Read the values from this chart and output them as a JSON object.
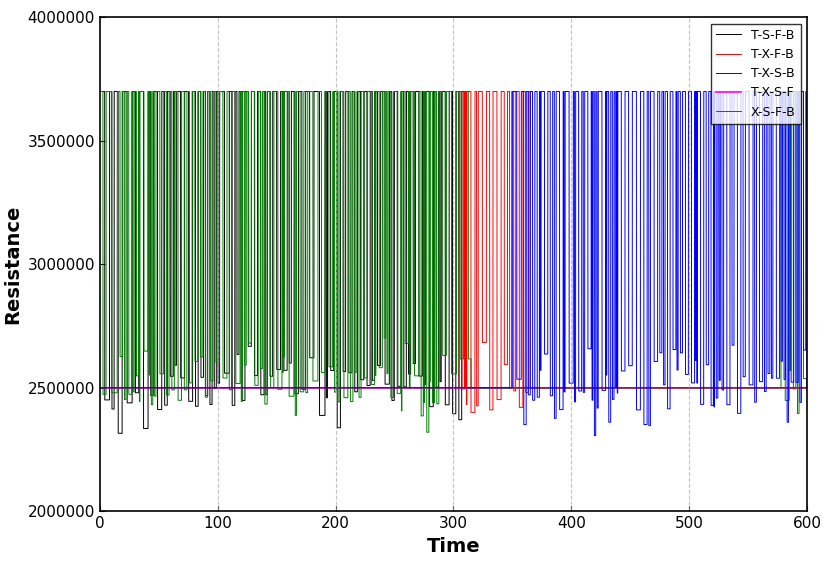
{
  "xlabel": "Time",
  "ylabel": "Resistance",
  "xlim": [
    0,
    600
  ],
  "ylim": [
    2000000,
    4000000
  ],
  "yticks": [
    2000000,
    2500000,
    3000000,
    3500000,
    4000000
  ],
  "xticks": [
    0,
    100,
    200,
    300,
    400,
    500,
    600
  ],
  "grid_x_positions": [
    100,
    200,
    300,
    400,
    500
  ],
  "high_val": 3700000,
  "low_val": 2500000,
  "magenta_val": 2500000,
  "series_order_plot": [
    "magenta",
    "black",
    "green",
    "red",
    "blue"
  ],
  "series": [
    {
      "label": "T-S-F-B",
      "key": "black",
      "color": "#000000",
      "active_ranges": [
        [
          0,
          310
        ]
      ],
      "period_mean": 5.0,
      "period_std": 2.0,
      "low_mean": 2500000,
      "low_std": 80000,
      "oscillate": true,
      "seed": 1
    },
    {
      "label": "T-X-F-B",
      "key": "red",
      "color": "#ff0000",
      "active_ranges": [
        [
          305,
          365
        ]
      ],
      "period_mean": 5.5,
      "period_std": 2.5,
      "low_mean": 2500000,
      "low_std": 80000,
      "oscillate": true,
      "seed": 2
    },
    {
      "label": "T-X-S-B",
      "key": "blue",
      "color": "#0000ff",
      "active_ranges": [
        [
          350,
          600
        ]
      ],
      "period_mean": 4.0,
      "period_std": 2.0,
      "low_mean": 2500000,
      "low_std": 80000,
      "oscillate": true,
      "seed": 3
    },
    {
      "label": "T-X-S-F",
      "key": "magenta",
      "color": "#ff00ff",
      "active_ranges": [],
      "period_mean": 0,
      "period_std": 0,
      "low_mean": 2500000,
      "low_std": 0,
      "oscillate": false,
      "seed": 4
    },
    {
      "label": "X-S-F-B",
      "key": "green",
      "color": "#008000",
      "active_ranges": [
        [
          0,
          315
        ],
        [
          578,
          600
        ]
      ],
      "period_mean": 4.5,
      "period_std": 2.0,
      "low_mean": 2500000,
      "low_std": 80000,
      "oscillate": true,
      "seed": 5
    }
  ],
  "legend_order": [
    "black",
    "red",
    "blue",
    "magenta",
    "green"
  ],
  "background_color": "#ffffff",
  "figsize": [
    8.32,
    5.81
  ],
  "dpi": 100,
  "xlabel_fontsize": 14,
  "ylabel_fontsize": 14,
  "tick_labelsize": 11,
  "legend_fontsize": 9,
  "line_width": 0.7,
  "grid_color": "#aaaaaa",
  "grid_alpha": 0.7
}
